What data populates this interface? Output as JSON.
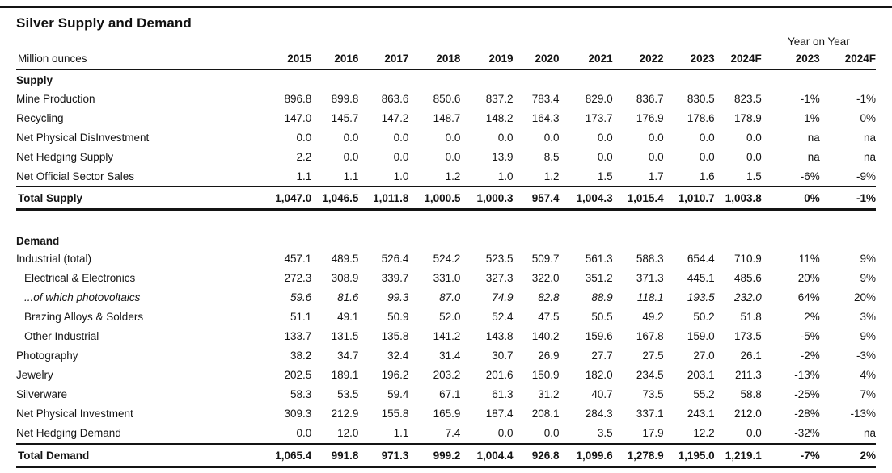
{
  "title": "Silver Supply and Demand",
  "unit_label": "Million ounces",
  "yoy_label": "Year on Year",
  "columns": [
    "2015",
    "2016",
    "2017",
    "2018",
    "2019",
    "2020",
    "2021",
    "2022",
    "2023",
    "2024F"
  ],
  "yoy_columns": [
    "2023",
    "2024F"
  ],
  "colors": {
    "text": "#141414",
    "rule": "#141414",
    "background": "#ffffff"
  },
  "sections": [
    {
      "name": "Supply",
      "rows": [
        {
          "label": "Mine Production",
          "values": [
            "896.8",
            "899.8",
            "863.6",
            "850.6",
            "837.2",
            "783.4",
            "829.0",
            "836.7",
            "830.5",
            "823.5"
          ],
          "yoy": [
            "-1%",
            "-1%"
          ]
        },
        {
          "label": "Recycling",
          "values": [
            "147.0",
            "145.7",
            "147.2",
            "148.7",
            "148.2",
            "164.3",
            "173.7",
            "176.9",
            "178.6",
            "178.9"
          ],
          "yoy": [
            "1%",
            "0%"
          ]
        },
        {
          "label": "Net Physical DisInvestment",
          "values": [
            "0.0",
            "0.0",
            "0.0",
            "0.0",
            "0.0",
            "0.0",
            "0.0",
            "0.0",
            "0.0",
            "0.0"
          ],
          "yoy": [
            "na",
            "na"
          ]
        },
        {
          "label": "Net Hedging Supply",
          "values": [
            "2.2",
            "0.0",
            "0.0",
            "0.0",
            "13.9",
            "8.5",
            "0.0",
            "0.0",
            "0.0",
            "0.0"
          ],
          "yoy": [
            "na",
            "na"
          ]
        },
        {
          "label": "Net Official Sector Sales",
          "values": [
            "1.1",
            "1.1",
            "1.0",
            "1.2",
            "1.0",
            "1.2",
            "1.5",
            "1.7",
            "1.6",
            "1.5"
          ],
          "yoy": [
            "-6%",
            "-9%"
          ]
        }
      ],
      "total": {
        "label": "Total Supply",
        "values": [
          "1,047.0",
          "1,046.5",
          "1,011.8",
          "1,000.5",
          "1,000.3",
          "957.4",
          "1,004.3",
          "1,015.4",
          "1,010.7",
          "1,003.8"
        ],
        "yoy": [
          "0%",
          "-1%"
        ]
      }
    },
    {
      "name": "Demand",
      "rows": [
        {
          "label": "Industrial (total)",
          "values": [
            "457.1",
            "489.5",
            "526.4",
            "524.2",
            "523.5",
            "509.7",
            "561.3",
            "588.3",
            "654.4",
            "710.9"
          ],
          "yoy": [
            "11%",
            "9%"
          ]
        },
        {
          "label": "Electrical & Electronics",
          "indent": true,
          "values": [
            "272.3",
            "308.9",
            "339.7",
            "331.0",
            "327.3",
            "322.0",
            "351.2",
            "371.3",
            "445.1",
            "485.6"
          ],
          "yoy": [
            "20%",
            "9%"
          ]
        },
        {
          "label": "...of which photovoltaics",
          "indent": true,
          "italic": true,
          "values": [
            "59.6",
            "81.6",
            "99.3",
            "87.0",
            "74.9",
            "82.8",
            "88.9",
            "118.1",
            "193.5",
            "232.0"
          ],
          "yoy": [
            "64%",
            "20%"
          ]
        },
        {
          "label": "Brazing Alloys & Solders",
          "indent": true,
          "values": [
            "51.1",
            "49.1",
            "50.9",
            "52.0",
            "52.4",
            "47.5",
            "50.5",
            "49.2",
            "50.2",
            "51.8"
          ],
          "yoy": [
            "2%",
            "3%"
          ]
        },
        {
          "label": "Other Industrial",
          "indent": true,
          "values": [
            "133.7",
            "131.5",
            "135.8",
            "141.2",
            "143.8",
            "140.2",
            "159.6",
            "167.8",
            "159.0",
            "173.5"
          ],
          "yoy": [
            "-5%",
            "9%"
          ]
        },
        {
          "label": "Photography",
          "values": [
            "38.2",
            "34.7",
            "32.4",
            "31.4",
            "30.7",
            "26.9",
            "27.7",
            "27.5",
            "27.0",
            "26.1"
          ],
          "yoy": [
            "-2%",
            "-3%"
          ]
        },
        {
          "label": "Jewelry",
          "values": [
            "202.5",
            "189.1",
            "196.2",
            "203.2",
            "201.6",
            "150.9",
            "182.0",
            "234.5",
            "203.1",
            "211.3"
          ],
          "yoy": [
            "-13%",
            "4%"
          ]
        },
        {
          "label": "Silverware",
          "values": [
            "58.3",
            "53.5",
            "59.4",
            "67.1",
            "61.3",
            "31.2",
            "40.7",
            "73.5",
            "55.2",
            "58.8"
          ],
          "yoy": [
            "-25%",
            "7%"
          ]
        },
        {
          "label": "Net Physical Investment",
          "values": [
            "309.3",
            "212.9",
            "155.8",
            "165.9",
            "187.4",
            "208.1",
            "284.3",
            "337.1",
            "243.1",
            "212.0"
          ],
          "yoy": [
            "-28%",
            "-13%"
          ]
        },
        {
          "label": "Net Hedging Demand",
          "values": [
            "0.0",
            "12.0",
            "1.1",
            "7.4",
            "0.0",
            "0.0",
            "3.5",
            "17.9",
            "12.2",
            "0.0"
          ],
          "yoy": [
            "-32%",
            "na"
          ]
        }
      ],
      "total": {
        "label": "Total Demand",
        "values": [
          "1,065.4",
          "991.8",
          "971.3",
          "999.2",
          "1,004.4",
          "926.8",
          "1,099.6",
          "1,278.9",
          "1,195.0",
          "1,219.1"
        ],
        "yoy": [
          "-7%",
          "2%"
        ]
      }
    }
  ]
}
